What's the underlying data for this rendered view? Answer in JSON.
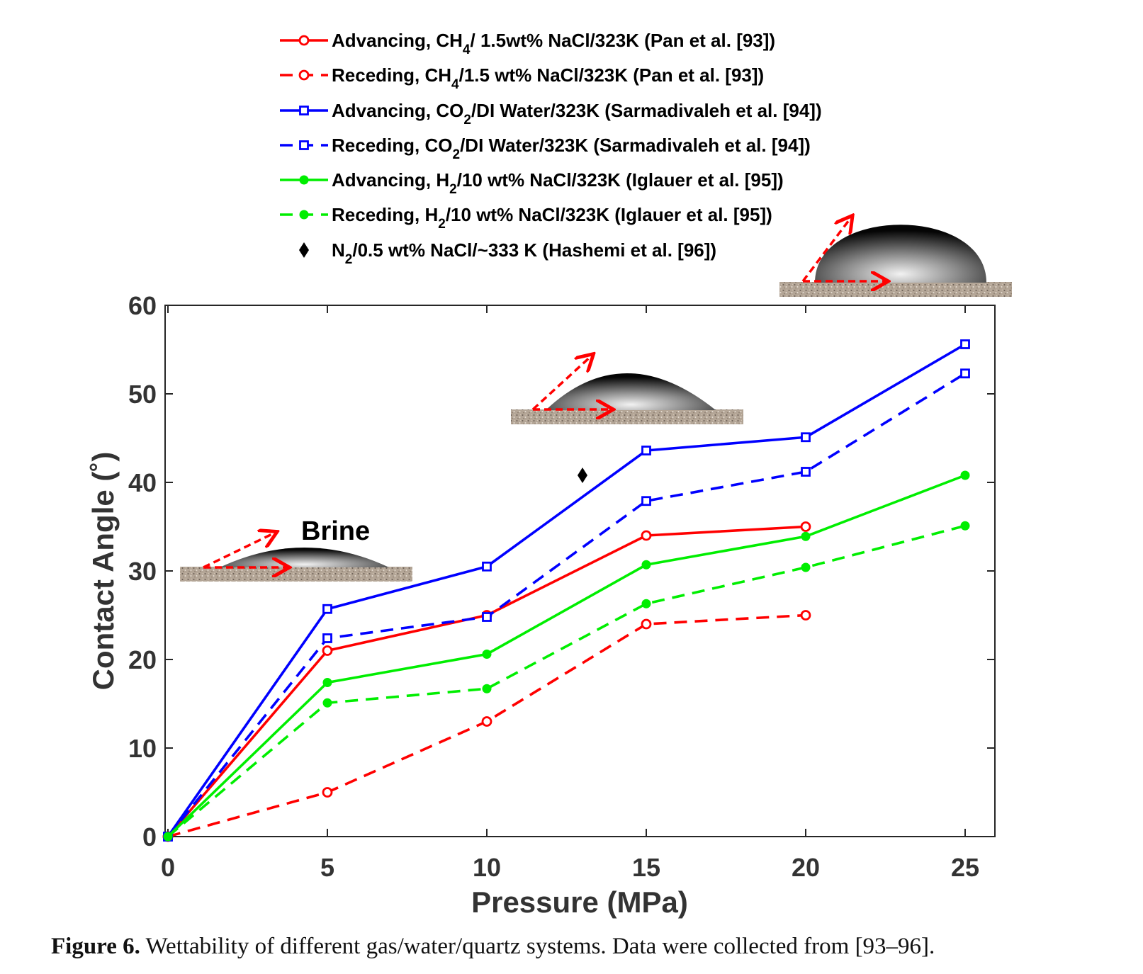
{
  "chart_data": {
    "type": "line",
    "xlabel": "Pressure (MPa)",
    "ylabel": "Contact Angle (˚)",
    "xlim": [
      0,
      26
    ],
    "ylim": [
      0,
      60
    ],
    "xticks": [
      0,
      5,
      10,
      15,
      20,
      25
    ],
    "yticks": [
      0,
      10,
      20,
      30,
      40,
      50,
      60
    ],
    "legend_position": "top-center",
    "series": [
      {
        "name": "Advancing, CH4/ 1.5wt% NaCl/323K (Pan et al. [93])",
        "legend_main": "Advancing, CH",
        "legend_sub": "4",
        "legend_rest": "/ 1.5wt% NaCl/323K (Pan et al. [93])",
        "color": "#ff0000",
        "dash": "solid",
        "marker": "circle-open",
        "x": [
          0,
          5,
          10,
          15,
          20
        ],
        "y": [
          0,
          21,
          25,
          34,
          35
        ]
      },
      {
        "name": "Receding, CH4/1.5 wt% NaCl/323K (Pan et al. [93])",
        "legend_main": "Receding, CH",
        "legend_sub": "4",
        "legend_rest": "/1.5 wt% NaCl/323K (Pan et al. [93])",
        "color": "#ff0000",
        "dash": "dashed",
        "marker": "circle-open",
        "x": [
          0,
          5,
          10,
          15,
          20
        ],
        "y": [
          0,
          5,
          13,
          24,
          25
        ]
      },
      {
        "name": "Advancing, CO2/DI Water/323K (Sarmadivaleh et al. [94])",
        "legend_main": "Advancing, CO",
        "legend_sub": "2",
        "legend_rest": "/DI Water/323K (Sarmadivaleh et al. [94])",
        "color": "#0000ff",
        "dash": "solid",
        "marker": "square-open",
        "x": [
          0,
          5,
          10,
          15,
          20,
          25
        ],
        "y": [
          0,
          25.7,
          30.5,
          43.6,
          45.1,
          55.6
        ]
      },
      {
        "name": "Receding, CO2/DI Water/323K (Sarmadivaleh et al. [94])",
        "legend_main": "Receding, CO",
        "legend_sub": "2",
        "legend_rest": "/DI Water/323K (Sarmadivaleh et al. [94])",
        "color": "#0000ff",
        "dash": "dashed",
        "marker": "square-open",
        "x": [
          0,
          5,
          10,
          15,
          20,
          25
        ],
        "y": [
          0,
          22.4,
          24.8,
          37.9,
          41.2,
          52.3
        ]
      },
      {
        "name": "Advancing, H2/10 wt% NaCl/323K (Iglauer et al. [95])",
        "legend_main": "Advancing, H",
        "legend_sub": "2",
        "legend_rest": "/10 wt% NaCl/323K (Iglauer et al. [95])",
        "color": "#00ee00",
        "dash": "solid",
        "marker": "circle-filled",
        "x": [
          0,
          5,
          10,
          15,
          20,
          25
        ],
        "y": [
          0,
          17.4,
          20.6,
          30.7,
          33.9,
          40.8
        ]
      },
      {
        "name": "Receding, H2/10 wt% NaCl/323K (Iglauer et al. [95])",
        "legend_main": "Receding, H",
        "legend_sub": "2",
        "legend_rest": "/10 wt% NaCl/323K (Iglauer et al. [95])",
        "color": "#00ee00",
        "dash": "dashed",
        "marker": "circle-filled",
        "x": [
          0,
          5,
          10,
          15,
          20,
          25
        ],
        "y": [
          0,
          15.1,
          16.7,
          26.3,
          30.4,
          35.1
        ]
      },
      {
        "name": "N2/0.5 wt% NaCl/~333 K (Hashemi et al. [96])",
        "legend_main": "N",
        "legend_sub": "2",
        "legend_rest": "/0.5 wt% NaCl/~333 K (Hashemi et al. [96])",
        "color": "#000000",
        "dash": "none",
        "marker": "diamond-filled",
        "x": [
          13
        ],
        "y": [
          40.8
        ]
      }
    ],
    "annotations": [
      {
        "text": "Brine"
      }
    ]
  },
  "caption": {
    "label": "Figure 6.",
    "text": " Wettability of different gas/water/quartz systems. Data were collected from [93–96]."
  }
}
